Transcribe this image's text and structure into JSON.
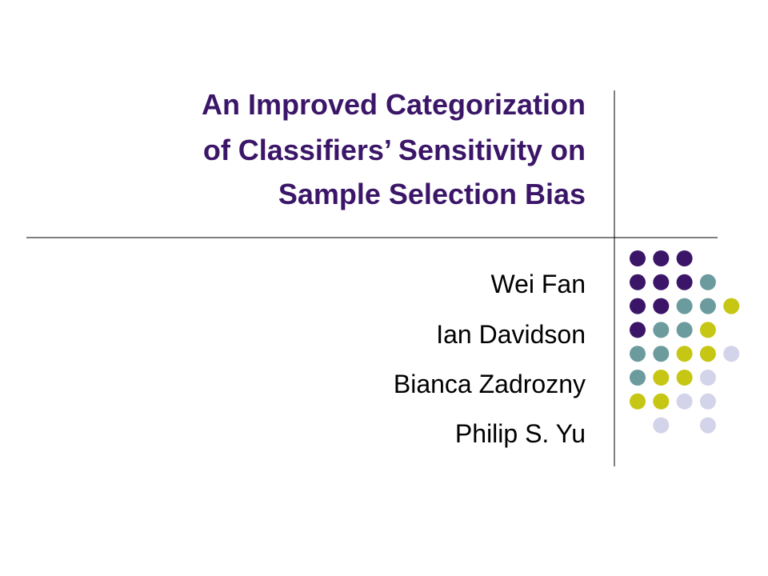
{
  "slide": {
    "title": [
      "An Improved Categorization",
      "of Classifiers’ Sensitivity on",
      "Sample Selection Bias"
    ],
    "authors": [
      "Wei Fan",
      "Ian Davidson",
      "Bianca Zadrozny",
      "Philip S. Yu"
    ]
  }
}
